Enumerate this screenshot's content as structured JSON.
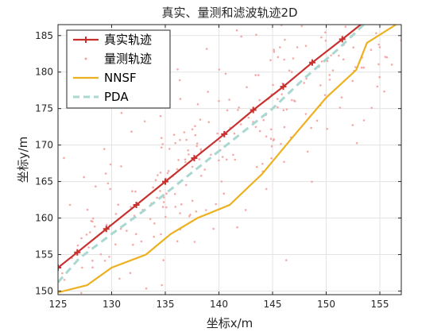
{
  "chart_data": {
    "type": "line",
    "title": "真实、量测和滤波轨迹2D",
    "xlabel": "坐标x/m",
    "ylabel": "坐标y/m",
    "xlim": [
      125,
      157
    ],
    "ylim": [
      149.5,
      186.5
    ],
    "xticks": [
      125,
      130,
      135,
      140,
      145,
      150,
      155
    ],
    "yticks": [
      150,
      155,
      160,
      165,
      170,
      175,
      180,
      185
    ],
    "grid": true,
    "legend_position": "top-left",
    "series": [
      {
        "name": "真实轨迹",
        "style": "solid-line-plus-markers",
        "color": "#c8302e",
        "x": [
          125.0,
          126.8,
          129.5,
          132.3,
          135.0,
          137.7,
          140.5,
          143.2,
          146.0,
          148.7,
          151.5,
          155.0
        ],
        "y": [
          153.2,
          155.3,
          158.5,
          161.8,
          165.0,
          168.2,
          171.5,
          174.8,
          178.0,
          181.3,
          184.5,
          188.6
        ]
      },
      {
        "name": "量测轨迹",
        "style": "scatter-dots",
        "color": "#f4a0a0"
      },
      {
        "name": "NNSF",
        "style": "solid-line",
        "color": "#edb120",
        "x": [
          125.0,
          127.7,
          130.0,
          133.2,
          135.5,
          138.0,
          141.0,
          144.0,
          147.0,
          150.0,
          152.8,
          153.8,
          156.5
        ],
        "y": [
          149.8,
          150.8,
          153.2,
          155.0,
          157.8,
          160.0,
          161.8,
          166.0,
          171.3,
          176.5,
          180.3,
          184.0,
          186.5
        ]
      },
      {
        "name": "PDA",
        "style": "dashed-line",
        "color": "#a8d8d0",
        "x": [
          125.0,
          127.0,
          130.0,
          133.0,
          136.0,
          139.0,
          142.0,
          145.0,
          148.0,
          151.0,
          153.5
        ],
        "y": [
          151.2,
          154.5,
          157.8,
          161.0,
          164.5,
          168.0,
          171.5,
          175.0,
          179.2,
          183.0,
          186.5
        ]
      }
    ]
  }
}
